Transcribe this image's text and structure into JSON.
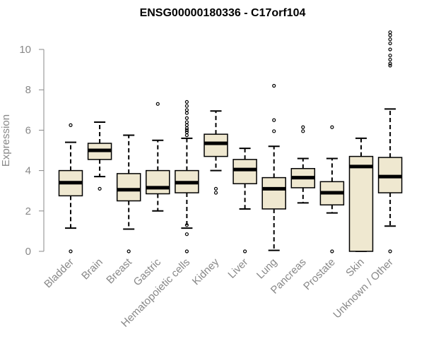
{
  "chart_data": {
    "type": "boxplot",
    "title": "ENSG00000180336 - C17orf104",
    "xlabel": "",
    "ylabel": "Expression",
    "ylim": [
      0,
      11
    ],
    "yticks": [
      0,
      2,
      4,
      6,
      8,
      10
    ],
    "colors": {
      "box_fill": "#efe8d0",
      "stroke": "#000000",
      "axis": "#888888"
    },
    "categories": [
      "Bladder",
      "Brain",
      "Breast",
      "Gastric",
      "Hematopoietic cells",
      "Kidney",
      "Liver",
      "Lung",
      "Pancreas",
      "Prostate",
      "Skin",
      "Unknown / Other"
    ],
    "boxes": [
      {
        "name": "Bladder",
        "whisker_low": 1.15,
        "q1": 2.75,
        "median": 3.4,
        "q3": 4.0,
        "whisker_high": 5.4,
        "outliers": [
          0,
          6.25
        ]
      },
      {
        "name": "Brain",
        "whisker_low": 3.7,
        "q1": 4.55,
        "median": 5.0,
        "q3": 5.35,
        "whisker_high": 6.4,
        "outliers": [
          3.1
        ]
      },
      {
        "name": "Breast",
        "whisker_low": 1.1,
        "q1": 2.5,
        "median": 3.05,
        "q3": 3.85,
        "whisker_high": 5.75,
        "outliers": [
          0
        ]
      },
      {
        "name": "Gastric",
        "whisker_low": 2.0,
        "q1": 2.85,
        "median": 3.15,
        "q3": 4.0,
        "whisker_high": 5.5,
        "outliers": [
          7.3
        ]
      },
      {
        "name": "Hematopoietic cells",
        "whisker_low": 1.15,
        "q1": 2.9,
        "median": 3.4,
        "q3": 4.0,
        "whisker_high": 5.6,
        "outliers": [
          0,
          0.85,
          1.3,
          5.75,
          5.9,
          6.0,
          6.1,
          6.25,
          6.4,
          6.6,
          6.85,
          7.0,
          7.2,
          7.4
        ]
      },
      {
        "name": "Kidney",
        "whisker_low": 4.0,
        "q1": 4.7,
        "median": 5.35,
        "q3": 5.8,
        "whisker_high": 6.95,
        "outliers": [
          2.9,
          3.1
        ]
      },
      {
        "name": "Liver",
        "whisker_low": 2.1,
        "q1": 3.35,
        "median": 4.05,
        "q3": 4.55,
        "whisker_high": 5.1,
        "outliers": [
          0
        ]
      },
      {
        "name": "Lung",
        "whisker_low": 0.05,
        "q1": 2.1,
        "median": 3.1,
        "q3": 3.65,
        "whisker_high": 5.2,
        "outliers": [
          5.95,
          6.5,
          8.2
        ]
      },
      {
        "name": "Pancreas",
        "whisker_low": 2.4,
        "q1": 3.15,
        "median": 3.65,
        "q3": 4.1,
        "whisker_high": 4.6,
        "outliers": [
          5.95,
          6.15
        ]
      },
      {
        "name": "Prostate",
        "whisker_low": 1.9,
        "q1": 2.3,
        "median": 2.9,
        "q3": 3.45,
        "whisker_high": 4.6,
        "outliers": [
          0,
          6.15
        ]
      },
      {
        "name": "Skin",
        "whisker_low": 0.0,
        "q1": 0.0,
        "median": 4.2,
        "q3": 4.7,
        "whisker_high": 5.6,
        "outliers": []
      },
      {
        "name": "Unknown / Other",
        "whisker_low": 1.25,
        "q1": 2.9,
        "median": 3.7,
        "q3": 4.65,
        "whisker_high": 7.05,
        "outliers": [
          0,
          9.2,
          9.3,
          9.5,
          9.7,
          10.0,
          10.3,
          10.5,
          10.7,
          10.85
        ]
      }
    ]
  }
}
